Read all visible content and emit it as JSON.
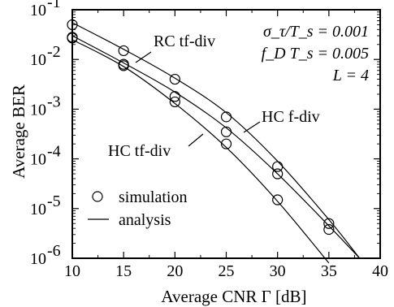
{
  "chart_data": {
    "type": "line",
    "xlabel": "Average CNR  Γ  [dB]",
    "ylabel": "Average BER",
    "xlim": [
      10,
      40
    ],
    "ylim_exp": [
      -6,
      -1
    ],
    "y_scale": "log",
    "x_ticks": [
      10,
      15,
      20,
      25,
      30,
      35,
      40
    ],
    "y_ticks": [
      {
        "base": "10",
        "exp": "-1"
      },
      {
        "base": "10",
        "exp": "-2"
      },
      {
        "base": "10",
        "exp": "-3"
      },
      {
        "base": "10",
        "exp": "-4"
      },
      {
        "base": "10",
        "exp": "-5"
      },
      {
        "base": "10",
        "exp": "-6"
      }
    ],
    "parameters": {
      "line1": "σ_τ/T_s = 0.001",
      "line2": "f_D T_s = 0.005",
      "line3": "L = 4"
    },
    "legend": {
      "placement": "bottom-left",
      "entries": [
        {
          "symbol": "circle",
          "label": "simulation"
        },
        {
          "symbol": "line",
          "label": "analysis"
        }
      ]
    },
    "annotations": [
      "RC tf-div",
      "HC f-div",
      "HC tf-div"
    ],
    "series": [
      {
        "name": "RC tf-div",
        "analysis": {
          "x": [
            10,
            15,
            20,
            25,
            30,
            35,
            38
          ],
          "y": [
            0.055,
            0.016,
            0.0042,
            0.00085,
            9e-05,
            6e-06,
            1e-06
          ]
        },
        "simulation": {
          "x": [
            10,
            15,
            20,
            25,
            30,
            35
          ],
          "y": [
            0.05,
            0.015,
            0.004,
            0.0007,
            7e-05,
            5e-06
          ]
        }
      },
      {
        "name": "HC f-div",
        "analysis": {
          "x": [
            10,
            15,
            20,
            25,
            30,
            35,
            38
          ],
          "y": [
            0.03,
            0.0085,
            0.0022,
            0.00042,
            5e-05,
            4.5e-06,
            1e-06
          ]
        },
        "simulation": {
          "x": [
            10,
            15,
            20,
            25,
            30,
            35
          ],
          "y": [
            0.028,
            0.008,
            0.0018,
            0.00035,
            5e-05,
            3.8e-06
          ]
        }
      },
      {
        "name": "HC tf-div",
        "analysis": {
          "x": [
            10,
            15,
            20,
            25,
            30,
            35
          ],
          "y": [
            0.025,
            0.0072,
            0.0013,
            0.00017,
            1.4e-05,
            8e-07
          ]
        },
        "simulation": {
          "x": [
            10,
            15,
            20,
            25,
            30
          ],
          "y": [
            0.027,
            0.0075,
            0.0014,
            0.0002,
            1.5e-05
          ]
        }
      }
    ]
  }
}
